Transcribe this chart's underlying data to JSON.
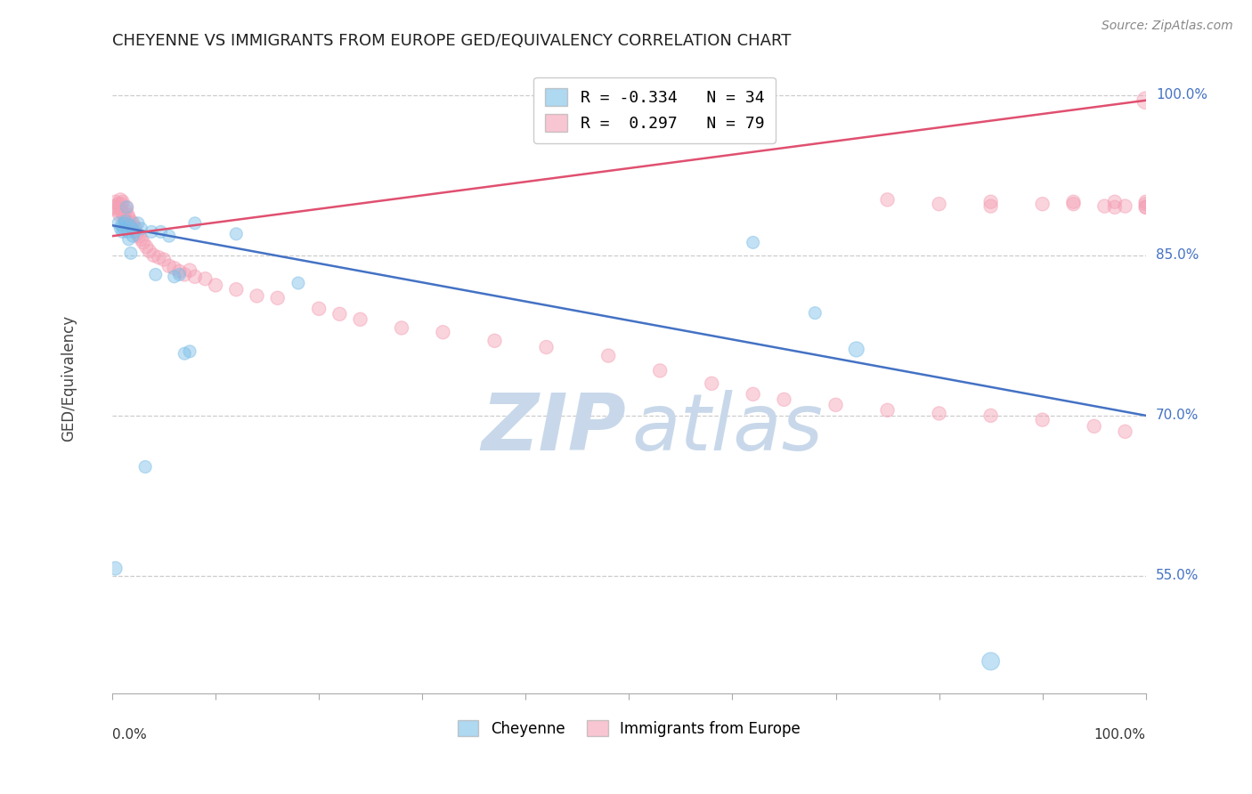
{
  "title": "CHEYENNE VS IMMIGRANTS FROM EUROPE GED/EQUIVALENCY CORRELATION CHART",
  "source": "Source: ZipAtlas.com",
  "ylabel": "GED/Equivalency",
  "xmin": 0.0,
  "xmax": 1.0,
  "ymin": 0.44,
  "ymax": 1.03,
  "ytick_positions": [
    0.55,
    0.7,
    0.85,
    1.0
  ],
  "ytick_labels": [
    "55.0%",
    "70.0%",
    "85.0%",
    "100.0%"
  ],
  "legend_line1": "R = -0.334   N = 34",
  "legend_line2": "R =  0.297   N = 79",
  "blue_color": "#7bbee8",
  "pink_color": "#f4a0b5",
  "blue_line_color": "#4472c4",
  "pink_line_color": "#e05070",
  "blue_line_x0": 0.0,
  "blue_line_y0": 0.878,
  "blue_line_x1": 1.0,
  "blue_line_y1": 0.7,
  "pink_line_x0": 0.0,
  "pink_line_y0": 0.868,
  "pink_line_x1": 1.0,
  "pink_line_y1": 0.995,
  "watermark_zip": "ZIP",
  "watermark_atlas": "atlas",
  "watermark_color": "#c8d8ea",
  "blue_scatter_x": [
    0.003,
    0.006,
    0.008,
    0.009,
    0.01,
    0.011,
    0.012,
    0.013,
    0.014,
    0.015,
    0.016,
    0.017,
    0.018,
    0.019,
    0.02,
    0.022,
    0.025,
    0.028,
    0.032,
    0.038,
    0.042,
    0.047,
    0.055,
    0.06,
    0.065,
    0.07,
    0.075,
    0.08,
    0.12,
    0.18,
    0.62,
    0.68,
    0.72,
    0.85
  ],
  "blue_scatter_y": [
    0.557,
    0.88,
    0.875,
    0.878,
    0.872,
    0.875,
    0.88,
    0.882,
    0.895,
    0.872,
    0.865,
    0.878,
    0.852,
    0.875,
    0.868,
    0.872,
    0.88,
    0.875,
    0.652,
    0.872,
    0.832,
    0.872,
    0.868,
    0.83,
    0.832,
    0.758,
    0.76,
    0.88,
    0.87,
    0.824,
    0.862,
    0.796,
    0.762,
    0.47
  ],
  "blue_scatter_sizes": [
    120,
    100,
    100,
    100,
    100,
    100,
    100,
    100,
    100,
    100,
    100,
    100,
    100,
    100,
    100,
    100,
    100,
    100,
    100,
    100,
    100,
    100,
    100,
    100,
    100,
    100,
    100,
    100,
    100,
    100,
    100,
    100,
    150,
    200
  ],
  "pink_scatter_x": [
    0.002,
    0.003,
    0.004,
    0.005,
    0.006,
    0.007,
    0.007,
    0.008,
    0.009,
    0.01,
    0.01,
    0.011,
    0.012,
    0.013,
    0.013,
    0.014,
    0.015,
    0.015,
    0.016,
    0.017,
    0.018,
    0.019,
    0.02,
    0.022,
    0.024,
    0.026,
    0.028,
    0.03,
    0.033,
    0.036,
    0.04,
    0.045,
    0.05,
    0.055,
    0.06,
    0.065,
    0.07,
    0.075,
    0.08,
    0.09,
    0.1,
    0.12,
    0.14,
    0.16,
    0.2,
    0.22,
    0.24,
    0.28,
    0.32,
    0.37,
    0.42,
    0.48,
    0.53,
    0.58,
    0.62,
    0.65,
    0.7,
    0.75,
    0.8,
    0.85,
    0.9,
    0.95,
    0.98,
    1.0,
    0.75,
    0.8,
    0.85,
    0.9,
    0.96,
    1.0,
    0.85,
    0.93,
    0.97,
    1.0,
    0.98,
    1.0,
    0.93,
    0.97,
    1.0
  ],
  "pink_scatter_y": [
    0.895,
    0.9,
    0.895,
    0.892,
    0.898,
    0.895,
    0.888,
    0.902,
    0.898,
    0.9,
    0.89,
    0.888,
    0.885,
    0.892,
    0.882,
    0.895,
    0.888,
    0.88,
    0.885,
    0.878,
    0.882,
    0.876,
    0.88,
    0.876,
    0.87,
    0.868,
    0.865,
    0.862,
    0.858,
    0.854,
    0.85,
    0.848,
    0.846,
    0.84,
    0.838,
    0.835,
    0.832,
    0.836,
    0.83,
    0.828,
    0.822,
    0.818,
    0.812,
    0.81,
    0.8,
    0.795,
    0.79,
    0.782,
    0.778,
    0.77,
    0.764,
    0.756,
    0.742,
    0.73,
    0.72,
    0.715,
    0.71,
    0.705,
    0.702,
    0.7,
    0.696,
    0.69,
    0.685,
    0.995,
    0.902,
    0.898,
    0.9,
    0.898,
    0.896,
    0.898,
    0.896,
    0.9,
    0.895,
    0.9,
    0.896,
    0.895,
    0.898,
    0.9,
    0.895
  ],
  "pink_scatter_sizes": [
    150,
    120,
    120,
    120,
    120,
    120,
    120,
    120,
    120,
    120,
    120,
    120,
    120,
    120,
    120,
    120,
    120,
    120,
    120,
    120,
    120,
    120,
    120,
    120,
    120,
    120,
    120,
    120,
    120,
    120,
    120,
    120,
    120,
    120,
    120,
    120,
    120,
    120,
    120,
    120,
    120,
    120,
    120,
    120,
    120,
    120,
    120,
    120,
    120,
    120,
    120,
    120,
    120,
    120,
    120,
    120,
    120,
    120,
    120,
    120,
    120,
    120,
    120,
    200,
    120,
    120,
    120,
    120,
    120,
    120,
    120,
    120,
    120,
    120,
    120,
    120,
    120,
    120,
    120
  ]
}
